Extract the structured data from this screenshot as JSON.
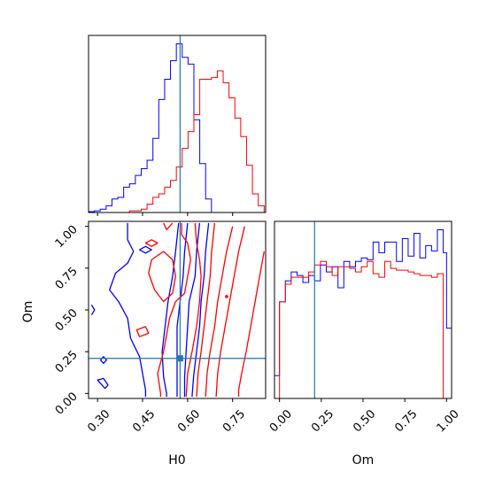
{
  "chart_data": {
    "type": "corner",
    "parameters": [
      "H0",
      "Om"
    ],
    "truth": {
      "H0": 0.575,
      "Om": 0.21
    },
    "colors": {
      "blue": "#0000ff",
      "red": "#ff0000",
      "truth": "#1f77b4"
    },
    "panels": [
      {
        "id": "hist-H0",
        "type": "histogram",
        "xlim": [
          0.27,
          0.86
        ],
        "x_ticks": [
          "0.30",
          "0.45",
          "0.60",
          "0.75"
        ],
        "x_tick_values": [
          0.3,
          0.45,
          0.6,
          0.75
        ],
        "bin_edges": [
          0.27,
          0.2895,
          0.309,
          0.3285,
          0.348,
          0.3675,
          0.387,
          0.4065,
          0.426,
          0.4455,
          0.465,
          0.4845,
          0.504,
          0.5235,
          0.543,
          0.5625,
          0.582,
          0.6015,
          0.621,
          0.6405,
          0.66,
          0.6795,
          0.699,
          0.7185,
          0.738,
          0.7575,
          0.777,
          0.7965,
          0.816,
          0.8355,
          0.855
        ],
        "series": [
          {
            "color": "blue",
            "counts": [
              0.5,
              1,
              2,
              4,
              8,
              9,
              15,
              17,
              22,
              26,
              31,
              44,
              67,
              79,
              90,
              100,
              92,
              88,
              55,
              29,
              8,
              0,
              0,
              0,
              0,
              0,
              0,
              0,
              0,
              0
            ]
          },
          {
            "color": "red",
            "counts": [
              0,
              0,
              0,
              0,
              0,
              0,
              0,
              1,
              1,
              2,
              5,
              9,
              11,
              15,
              19,
              27,
              38,
              48,
              58,
              79,
              79,
              80,
              84,
              77,
              68,
              56,
              45,
              28,
              11,
              4
            ]
          }
        ]
      },
      {
        "id": "contour-H0-Om",
        "type": "contour",
        "xlabel": "H0",
        "ylabel": "Om",
        "xlim": [
          0.27,
          0.86
        ],
        "ylim": [
          -0.03,
          1.03
        ],
        "x_ticks": [
          "0.30",
          "0.45",
          "0.60",
          "0.75"
        ],
        "x_tick_values": [
          0.3,
          0.45,
          0.6,
          0.75
        ],
        "y_ticks": [
          "0.00",
          "0.25",
          "0.50",
          "0.75",
          "1.00"
        ],
        "y_tick_values": [
          0.0,
          0.25,
          0.5,
          0.75,
          1.0
        ],
        "contours": [
          {
            "color": "blue",
            "points": [
              [
                0.4,
                1.02
              ],
              [
                0.4,
                0.92
              ],
              [
                0.42,
                0.85
              ],
              [
                0.4,
                0.78
              ],
              [
                0.36,
                0.72
              ],
              [
                0.34,
                0.62
              ],
              [
                0.37,
                0.55
              ],
              [
                0.4,
                0.45
              ],
              [
                0.41,
                0.33
              ],
              [
                0.44,
                0.22
              ],
              [
                0.45,
                0.12
              ],
              [
                0.46,
                0.02
              ],
              [
                0.46,
                -0.02
              ]
            ]
          },
          {
            "color": "blue",
            "points": [
              [
                0.57,
                1.02
              ],
              [
                0.56,
                0.85
              ],
              [
                0.55,
                0.7
              ],
              [
                0.535,
                0.55
              ],
              [
                0.525,
                0.4
              ],
              [
                0.515,
                0.25
              ],
              [
                0.52,
                0.1
              ],
              [
                0.53,
                0.0
              ],
              [
                0.53,
                -0.02
              ]
            ]
          },
          {
            "color": "blue",
            "points": [
              [
                0.6,
                1.02
              ],
              [
                0.59,
                0.85
              ],
              [
                0.585,
                0.7
              ],
              [
                0.575,
                0.55
              ],
              [
                0.565,
                0.4
              ],
              [
                0.565,
                0.25
              ],
              [
                0.565,
                0.1
              ],
              [
                0.565,
                -0.02
              ]
            ]
          },
          {
            "color": "blue",
            "points": [
              [
                0.64,
                1.02
              ],
              [
                0.63,
                0.85
              ],
              [
                0.625,
                0.7
              ],
              [
                0.605,
                0.55
              ],
              [
                0.6,
                0.4
              ],
              [
                0.595,
                0.25
              ],
              [
                0.59,
                0.1
              ],
              [
                0.59,
                -0.02
              ]
            ]
          },
          {
            "color": "blue",
            "points": [
              [
                0.67,
                1.02
              ],
              [
                0.66,
                0.85
              ],
              [
                0.655,
                0.7
              ],
              [
                0.645,
                0.55
              ],
              [
                0.64,
                0.4
              ],
              [
                0.63,
                0.25
              ],
              [
                0.62,
                0.1
              ],
              [
                0.615,
                -0.02
              ]
            ]
          },
          {
            "color": "blue",
            "points": [
              [
                0.44,
                0.86
              ],
              [
                0.46,
                0.88
              ],
              [
                0.48,
                0.86
              ],
              [
                0.46,
                0.84
              ],
              [
                0.44,
                0.86
              ]
            ],
            "closed": true
          },
          {
            "color": "blue",
            "points": [
              [
                0.32,
                0.22
              ],
              [
                0.33,
                0.2
              ],
              [
                0.32,
                0.18
              ],
              [
                0.31,
                0.2
              ],
              [
                0.32,
                0.22
              ]
            ],
            "closed": true
          },
          {
            "color": "blue",
            "points": [
              [
                0.32,
                0.09
              ],
              [
                0.335,
                0.05
              ],
              [
                0.325,
                0.03
              ],
              [
                0.3,
                0.08
              ],
              [
                0.32,
                0.09
              ]
            ],
            "closed": true
          },
          {
            "color": "blue",
            "points": [
              [
                0.28,
                0.53
              ],
              [
                0.29,
                0.5
              ],
              [
                0.28,
                0.47
              ]
            ]
          },
          {
            "color": "red",
            "points": [
              [
                0.58,
                1.02
              ],
              [
                0.58,
                0.95
              ],
              [
                0.6,
                0.9
              ],
              [
                0.61,
                0.8
              ],
              [
                0.6,
                0.7
              ],
              [
                0.59,
                0.6
              ],
              [
                0.56,
                0.55
              ],
              [
                0.54,
                0.45
              ],
              [
                0.53,
                0.35
              ],
              [
                0.52,
                0.25
              ],
              [
                0.5,
                0.12
              ],
              [
                0.51,
                0.0
              ],
              [
                0.51,
                -0.02
              ]
            ]
          },
          {
            "color": "red",
            "points": [
              [
                0.625,
                1.02
              ],
              [
                0.63,
                0.9
              ],
              [
                0.64,
                0.8
              ],
              [
                0.645,
                0.7
              ],
              [
                0.64,
                0.55
              ],
              [
                0.63,
                0.4
              ],
              [
                0.615,
                0.25
              ],
              [
                0.6,
                0.12
              ],
              [
                0.595,
                -0.02
              ]
            ]
          },
          {
            "color": "red",
            "points": [
              [
                0.69,
                1.02
              ],
              [
                0.68,
                0.85
              ],
              [
                0.675,
                0.7
              ],
              [
                0.665,
                0.55
              ],
              [
                0.655,
                0.4
              ],
              [
                0.645,
                0.25
              ],
              [
                0.635,
                0.12
              ],
              [
                0.63,
                -0.02
              ]
            ]
          },
          {
            "color": "red",
            "points": [
              [
                0.75,
                1.0
              ],
              [
                0.73,
                0.85
              ],
              [
                0.715,
                0.7
              ],
              [
                0.7,
                0.55
              ],
              [
                0.69,
                0.4
              ],
              [
                0.675,
                0.25
              ],
              [
                0.665,
                0.12
              ],
              [
                0.66,
                -0.02
              ]
            ]
          },
          {
            "color": "red",
            "points": [
              [
                0.79,
                1.0
              ],
              [
                0.77,
                0.85
              ],
              [
                0.755,
                0.7
              ],
              [
                0.74,
                0.55
              ],
              [
                0.725,
                0.4
              ],
              [
                0.71,
                0.25
              ],
              [
                0.7,
                0.12
              ],
              [
                0.695,
                -0.02
              ]
            ]
          },
          {
            "color": "red",
            "points": [
              [
                0.855,
                0.85
              ],
              [
                0.84,
                0.7
              ],
              [
                0.825,
                0.55
              ],
              [
                0.81,
                0.4
              ],
              [
                0.795,
                0.25
              ],
              [
                0.78,
                0.12
              ],
              [
                0.77,
                0.02
              ],
              [
                0.77,
                -0.02
              ]
            ]
          },
          {
            "color": "red",
            "points": [
              [
                0.48,
                0.8
              ],
              [
                0.52,
                0.85
              ],
              [
                0.55,
                0.8
              ],
              [
                0.56,
                0.7
              ],
              [
                0.55,
                0.6
              ],
              [
                0.52,
                0.55
              ],
              [
                0.49,
                0.62
              ],
              [
                0.47,
                0.72
              ],
              [
                0.48,
                0.8
              ]
            ],
            "closed": true
          },
          {
            "color": "red",
            "points": [
              [
                0.43,
                0.38
              ],
              [
                0.46,
                0.4
              ],
              [
                0.47,
                0.36
              ],
              [
                0.44,
                0.34
              ],
              [
                0.43,
                0.38
              ]
            ],
            "closed": true
          },
          {
            "color": "red",
            "points": [
              [
                0.46,
                0.9
              ],
              [
                0.48,
                0.92
              ],
              [
                0.5,
                0.9
              ],
              [
                0.48,
                0.88
              ],
              [
                0.46,
                0.9
              ]
            ],
            "closed": true
          },
          {
            "color": "red",
            "points": [
              [
                0.52,
                1.02
              ],
              [
                0.53,
                0.98
              ],
              [
                0.55,
                1.02
              ]
            ]
          }
        ],
        "markers": [
          {
            "color": "red",
            "x": 0.73,
            "y": 0.58
          }
        ]
      },
      {
        "id": "hist-Om",
        "type": "histogram",
        "xlim": [
          -0.03,
          1.03
        ],
        "x_ticks": [
          "0.00",
          "0.25",
          "0.50",
          "0.75",
          "1.00"
        ],
        "x_tick_values": [
          0.0,
          0.25,
          0.5,
          0.75,
          1.0
        ],
        "bin_edges": [
          -0.03,
          0.0,
          0.035,
          0.07,
          0.105,
          0.14,
          0.175,
          0.21,
          0.245,
          0.28,
          0.315,
          0.35,
          0.385,
          0.42,
          0.455,
          0.49,
          0.525,
          0.56,
          0.595,
          0.63,
          0.665,
          0.7,
          0.735,
          0.77,
          0.805,
          0.84,
          0.875,
          0.91,
          0.945,
          0.98,
          1.0,
          1.03
        ],
        "series": [
          {
            "color": "blue",
            "counts": [
              13,
              55,
              67,
              72,
              70,
              66,
              70,
              67,
              76,
              72,
              75,
              63,
              78,
              75,
              78,
              80,
              79,
              89,
              83,
              89,
              89,
              78,
              91,
              81,
              94,
              80,
              87,
              84,
              96,
              83,
              40
            ]
          },
          {
            "color": "red",
            "counts": [
              0,
              55,
              65,
              69,
              69,
              69,
              72,
              76,
              78,
              75,
              70,
              75,
              75,
              74,
              72,
              75,
              78,
              71,
              69,
              78,
              74,
              73,
              73,
              72,
              71,
              70,
              70,
              69,
              71,
              0,
              0
            ]
          }
        ]
      }
    ]
  }
}
